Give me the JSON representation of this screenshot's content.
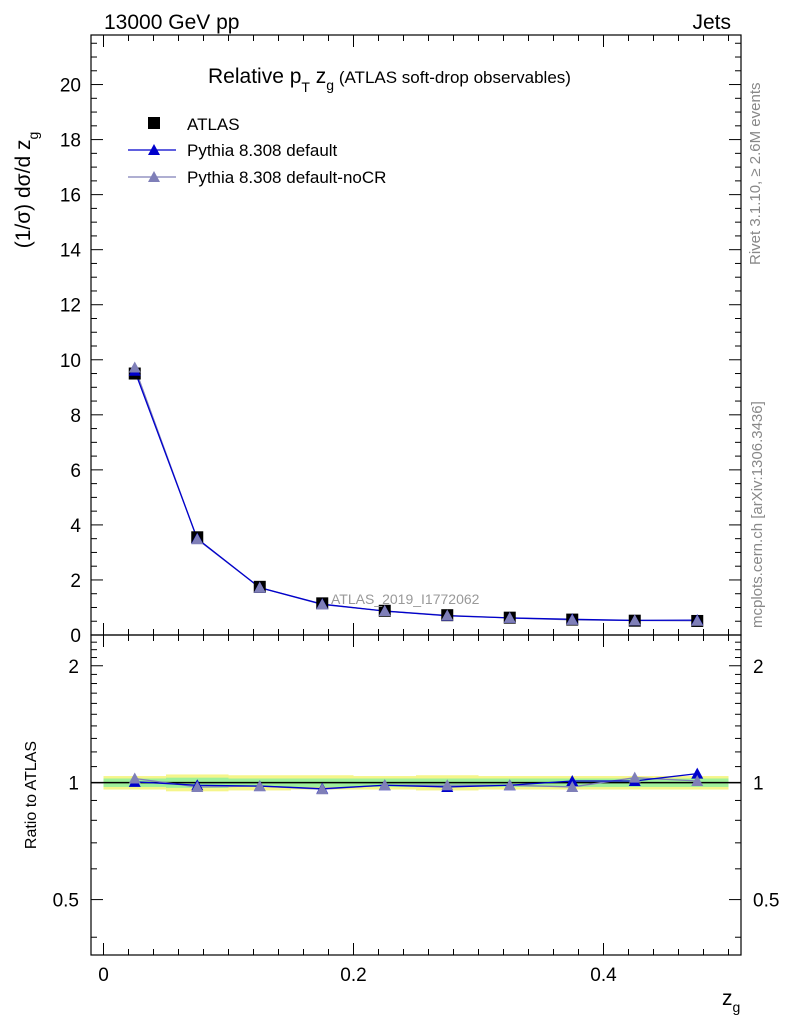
{
  "header": {
    "left": "13000 GeV pp",
    "right": "Jets"
  },
  "side_labels": {
    "rivet": "Rivet 3.1.10, ≥ 2.6M events",
    "mcplots": "mcplots.cern.ch [arXiv:1306.3436]"
  },
  "chart_data": [
    {
      "type": "scatter",
      "title_main": "Relative p",
      "title_sub_T": "T",
      "title_mid": " z",
      "title_sub_g": "g",
      "title_rest": " (ATLAS soft-drop observables)",
      "ylabel": "(1/σ) dσ/d z",
      "ylabel_sub": "g",
      "watermark": "ATLAS_2019_I1772062",
      "xlim": [
        -0.01,
        0.51
      ],
      "ylim": [
        0,
        21.8
      ],
      "yticks": [
        0,
        2,
        4,
        6,
        8,
        10,
        12,
        14,
        16,
        18,
        20
      ],
      "legend_position": "top-left",
      "x": [
        0.025,
        0.075,
        0.125,
        0.175,
        0.225,
        0.275,
        0.325,
        0.375,
        0.425,
        0.475
      ],
      "series": [
        {
          "name": "ATLAS",
          "marker": "square",
          "color": "#000000",
          "values": [
            9.5,
            3.55,
            1.75,
            1.15,
            0.88,
            0.72,
            0.63,
            0.56,
            0.52,
            0.51
          ]
        },
        {
          "name": "Pythia 8.308 default",
          "marker": "triangle",
          "color": "#0000cc",
          "values": [
            9.6,
            3.5,
            1.72,
            1.12,
            0.87,
            0.7,
            0.62,
            0.57,
            0.53,
            0.54
          ]
        },
        {
          "name": "Pythia 8.308 default-noCR",
          "marker": "triangle",
          "color": "#7f7fb8",
          "values": [
            9.72,
            3.48,
            1.72,
            1.11,
            0.87,
            0.71,
            0.62,
            0.55,
            0.53,
            0.52
          ]
        }
      ]
    },
    {
      "type": "line",
      "ylabel": "Ratio to ATLAS",
      "xlabel": "z",
      "xlabel_sub": "g",
      "xlim": [
        -0.01,
        0.51
      ],
      "ylim": [
        0.36,
        2.4
      ],
      "log_y": true,
      "yticks": [
        0.5,
        1,
        2
      ],
      "ytick_labels": [
        "0.5",
        "1",
        "2"
      ],
      "xticks": [
        0,
        0.2,
        0.4
      ],
      "xtick_labels": [
        "0",
        "0.2",
        "0.4"
      ],
      "x": [
        0.025,
        0.075,
        0.125,
        0.175,
        0.225,
        0.275,
        0.325,
        0.375,
        0.425,
        0.475
      ],
      "band_outer": [
        0.96,
        0.95,
        0.955,
        0.96,
        0.96,
        0.955,
        0.96,
        0.96,
        0.96,
        0.96
      ],
      "band_outer_hi": [
        1.04,
        1.05,
        1.045,
        1.045,
        1.04,
        1.045,
        1.04,
        1.04,
        1.04,
        1.04
      ],
      "band_inner": [
        0.975,
        0.97,
        0.975,
        0.975,
        0.975,
        0.975,
        0.975,
        0.975,
        0.975,
        0.975
      ],
      "band_inner_hi": [
        1.025,
        1.03,
        1.025,
        1.025,
        1.025,
        1.025,
        1.025,
        1.025,
        1.025,
        1.025
      ],
      "series": [
        {
          "name": "Pythia 8.308 default",
          "color": "#0000cc",
          "values": [
            1.005,
            0.985,
            0.98,
            0.965,
            0.985,
            0.975,
            0.985,
            1.01,
            1.01,
            1.055
          ],
          "errors": [
            0.005,
            0.006,
            0.006,
            0.007,
            0.008,
            0.009,
            0.01,
            0.015,
            0.018,
            0.02
          ]
        },
        {
          "name": "Pythia 8.308 default-noCR",
          "color": "#7f7fb8",
          "values": [
            1.025,
            0.975,
            0.98,
            0.962,
            0.985,
            0.985,
            0.985,
            0.975,
            1.03,
            1.01
          ],
          "errors": [
            0.005,
            0.006,
            0.006,
            0.007,
            0.008,
            0.009,
            0.01,
            0.012,
            0.02,
            0.018
          ]
        }
      ]
    }
  ],
  "colors": {
    "band_outer": "#f5f58a",
    "band_inner": "#9ef09a",
    "ref_line": "#009900"
  }
}
